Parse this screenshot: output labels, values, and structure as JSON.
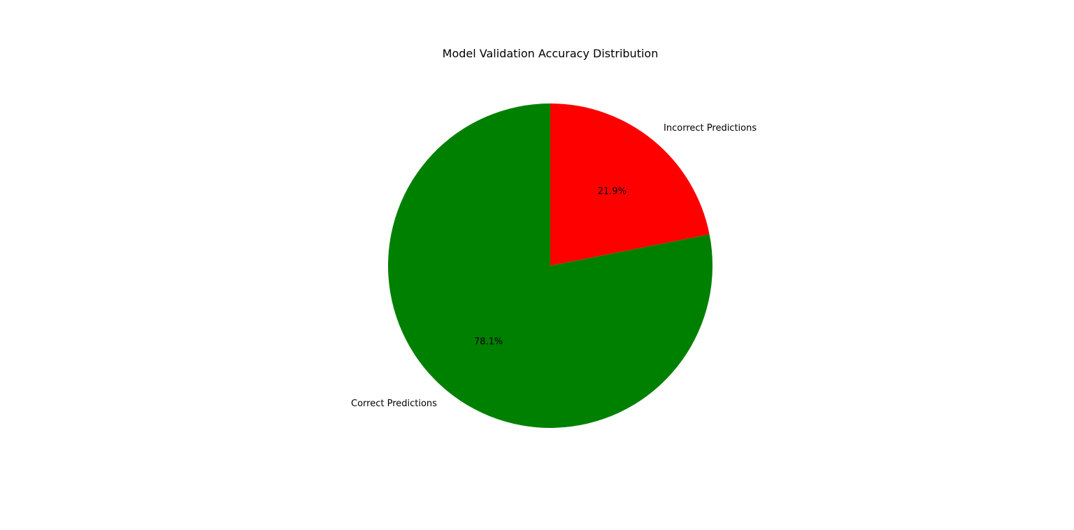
{
  "chart_data": {
    "type": "pie",
    "title": "Model Validation Accuracy Distribution",
    "slices": [
      {
        "label": "Correct Predictions",
        "value": 78.1,
        "pct_label": "78.1%",
        "color": "#008000"
      },
      {
        "label": "Incorrect Predictions",
        "value": 21.9,
        "pct_label": "21.9%",
        "color": "#ff0000"
      }
    ],
    "start_angle_deg": 90,
    "direction": "counterclockwise",
    "legend": "none"
  }
}
